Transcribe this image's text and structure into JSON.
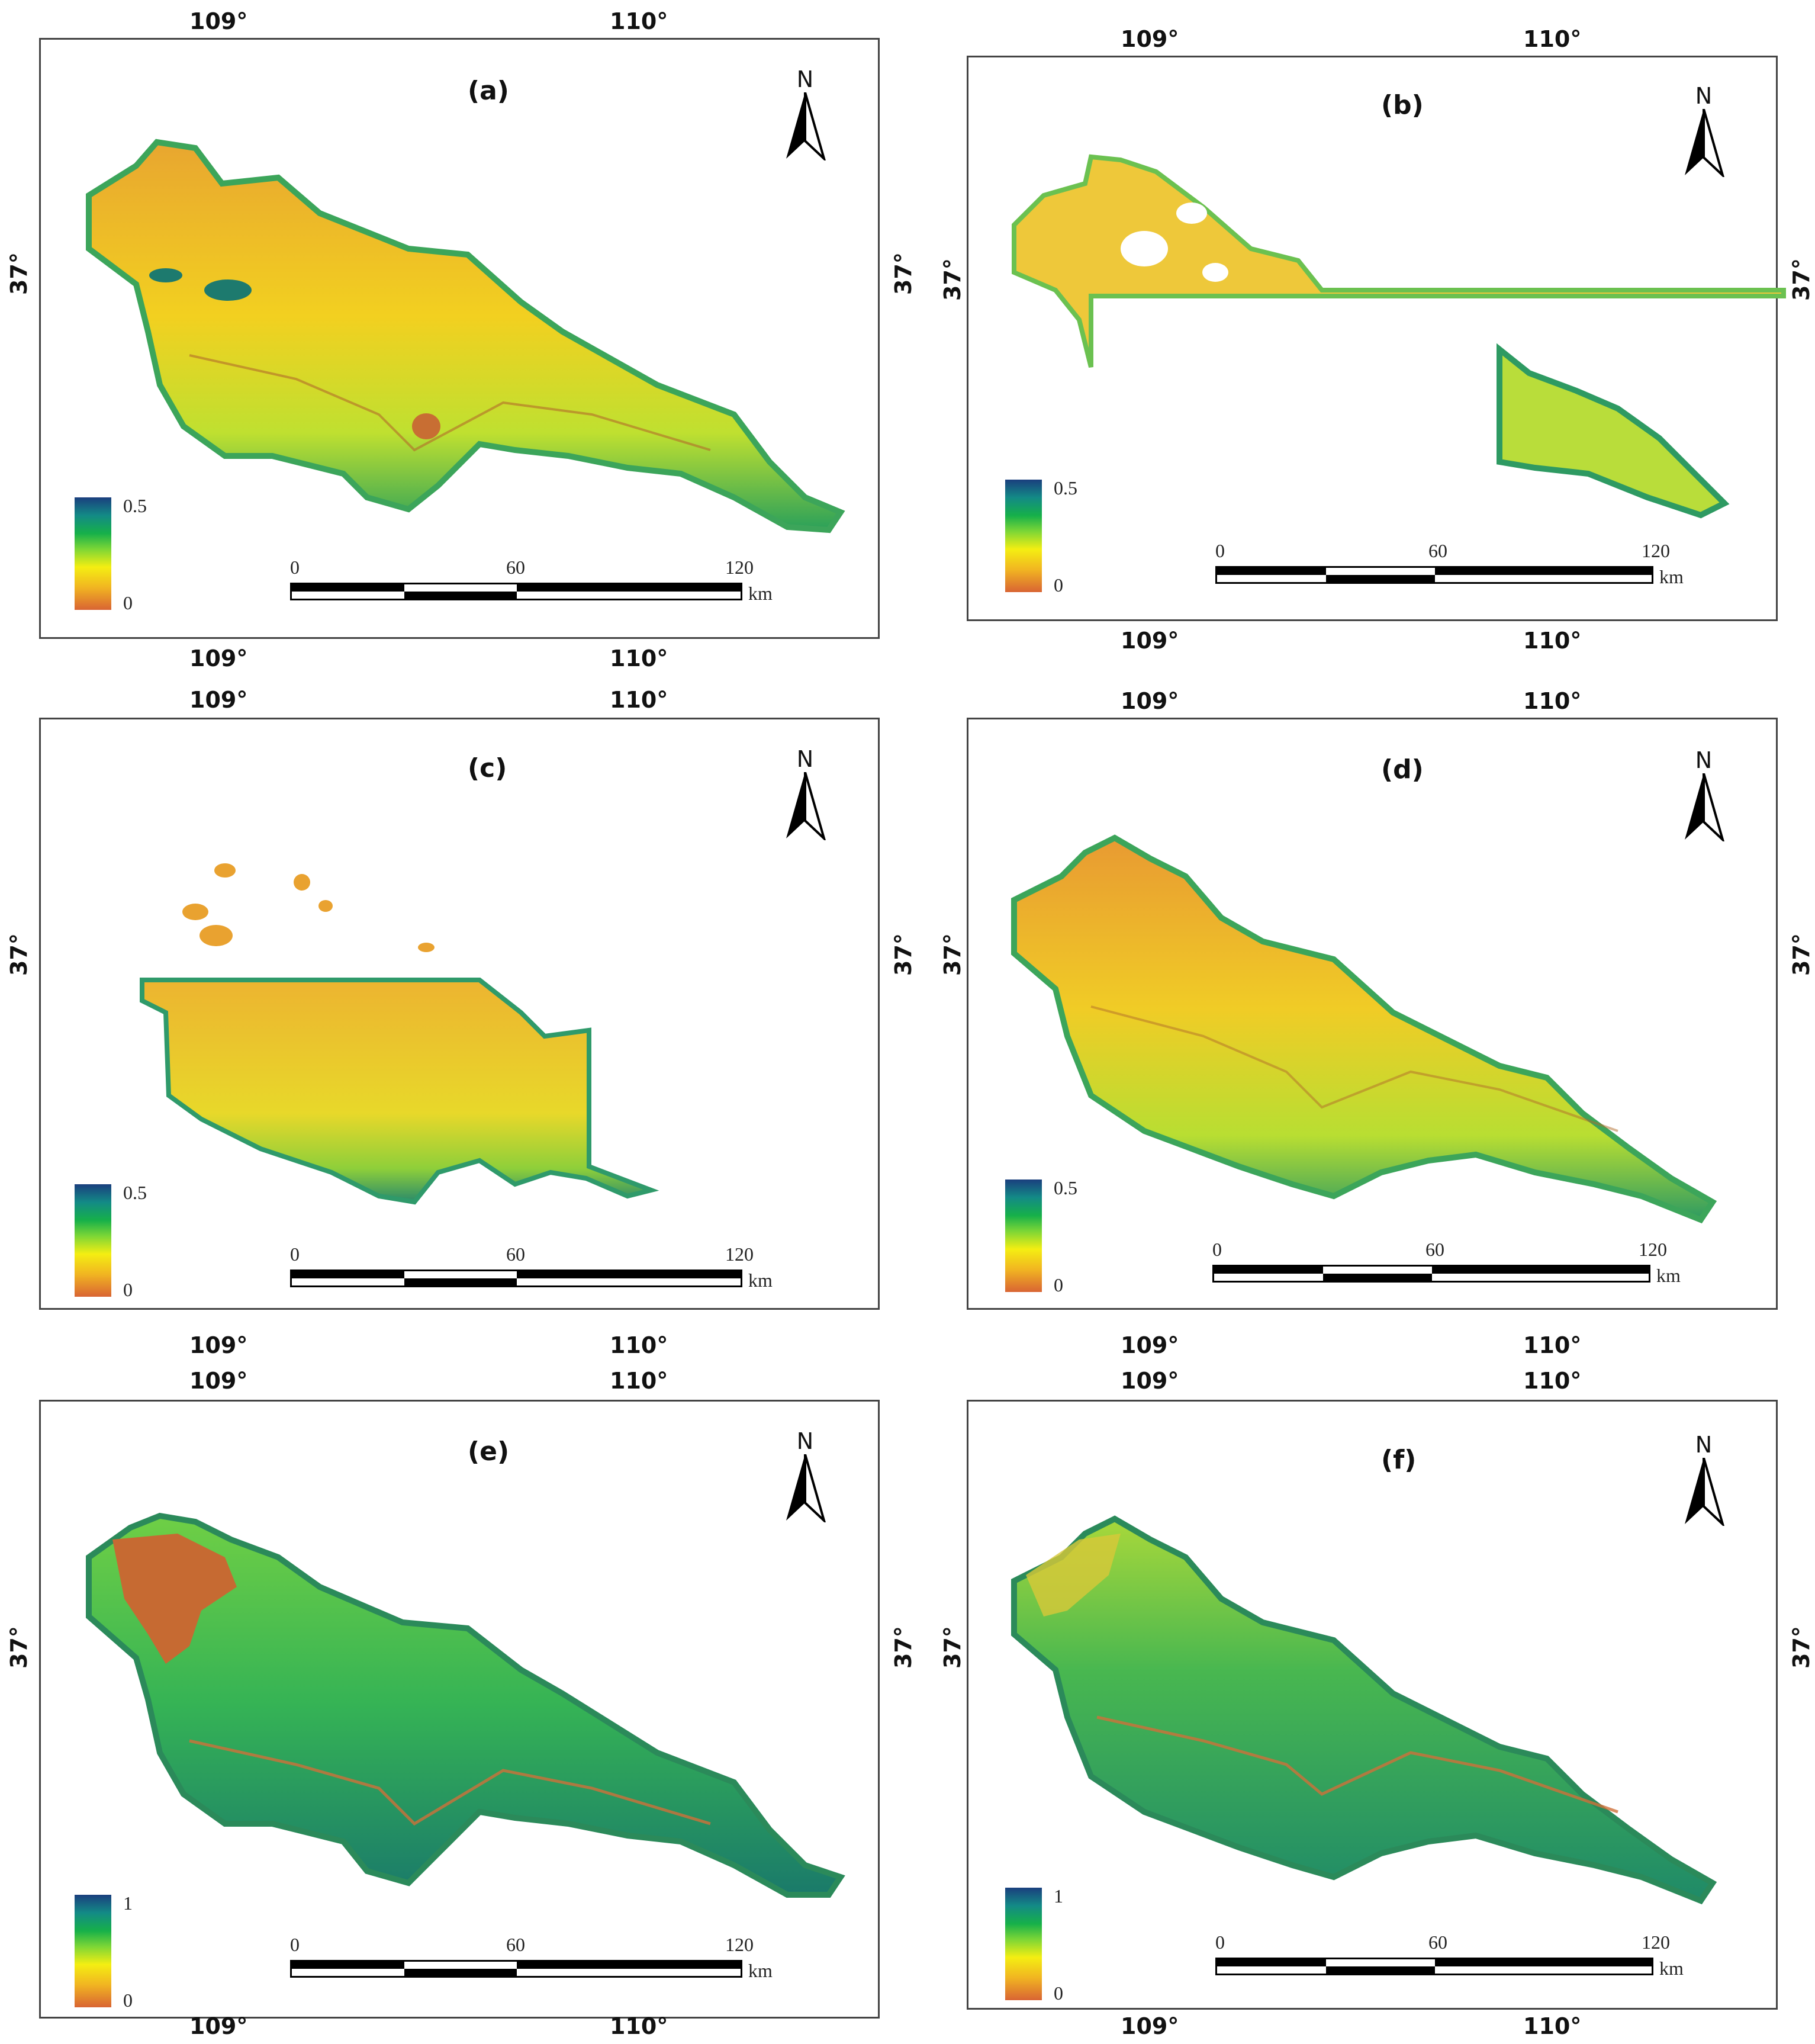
{
  "panels": [
    {
      "id": "a",
      "title": "(a)",
      "legend": {
        "max": "0.5",
        "min": "0"
      }
    },
    {
      "id": "b",
      "title": "(b)",
      "legend": {
        "max": "0.5",
        "min": "0"
      }
    },
    {
      "id": "c",
      "title": "(c)",
      "legend": {
        "max": "0.5",
        "min": "0"
      }
    },
    {
      "id": "d",
      "title": "(d)",
      "legend": {
        "max": "0.5",
        "min": "0"
      }
    },
    {
      "id": "e",
      "title": "(e)",
      "legend": {
        "max": "1",
        "min": "0"
      }
    },
    {
      "id": "f",
      "title": "(f)",
      "legend": {
        "max": "1",
        "min": "0"
      }
    }
  ],
  "graticule": {
    "lon1": "109°",
    "lon2": "110°",
    "lat": "37°"
  },
  "north_label": "N",
  "scalebar": {
    "t0": "0",
    "t1": "60",
    "t2": "120",
    "unit": "km"
  },
  "colors": {
    "low": "#d96433",
    "mid_low": "#f4ee12",
    "mid": "#16b04a",
    "high": "#1a3f7e"
  }
}
